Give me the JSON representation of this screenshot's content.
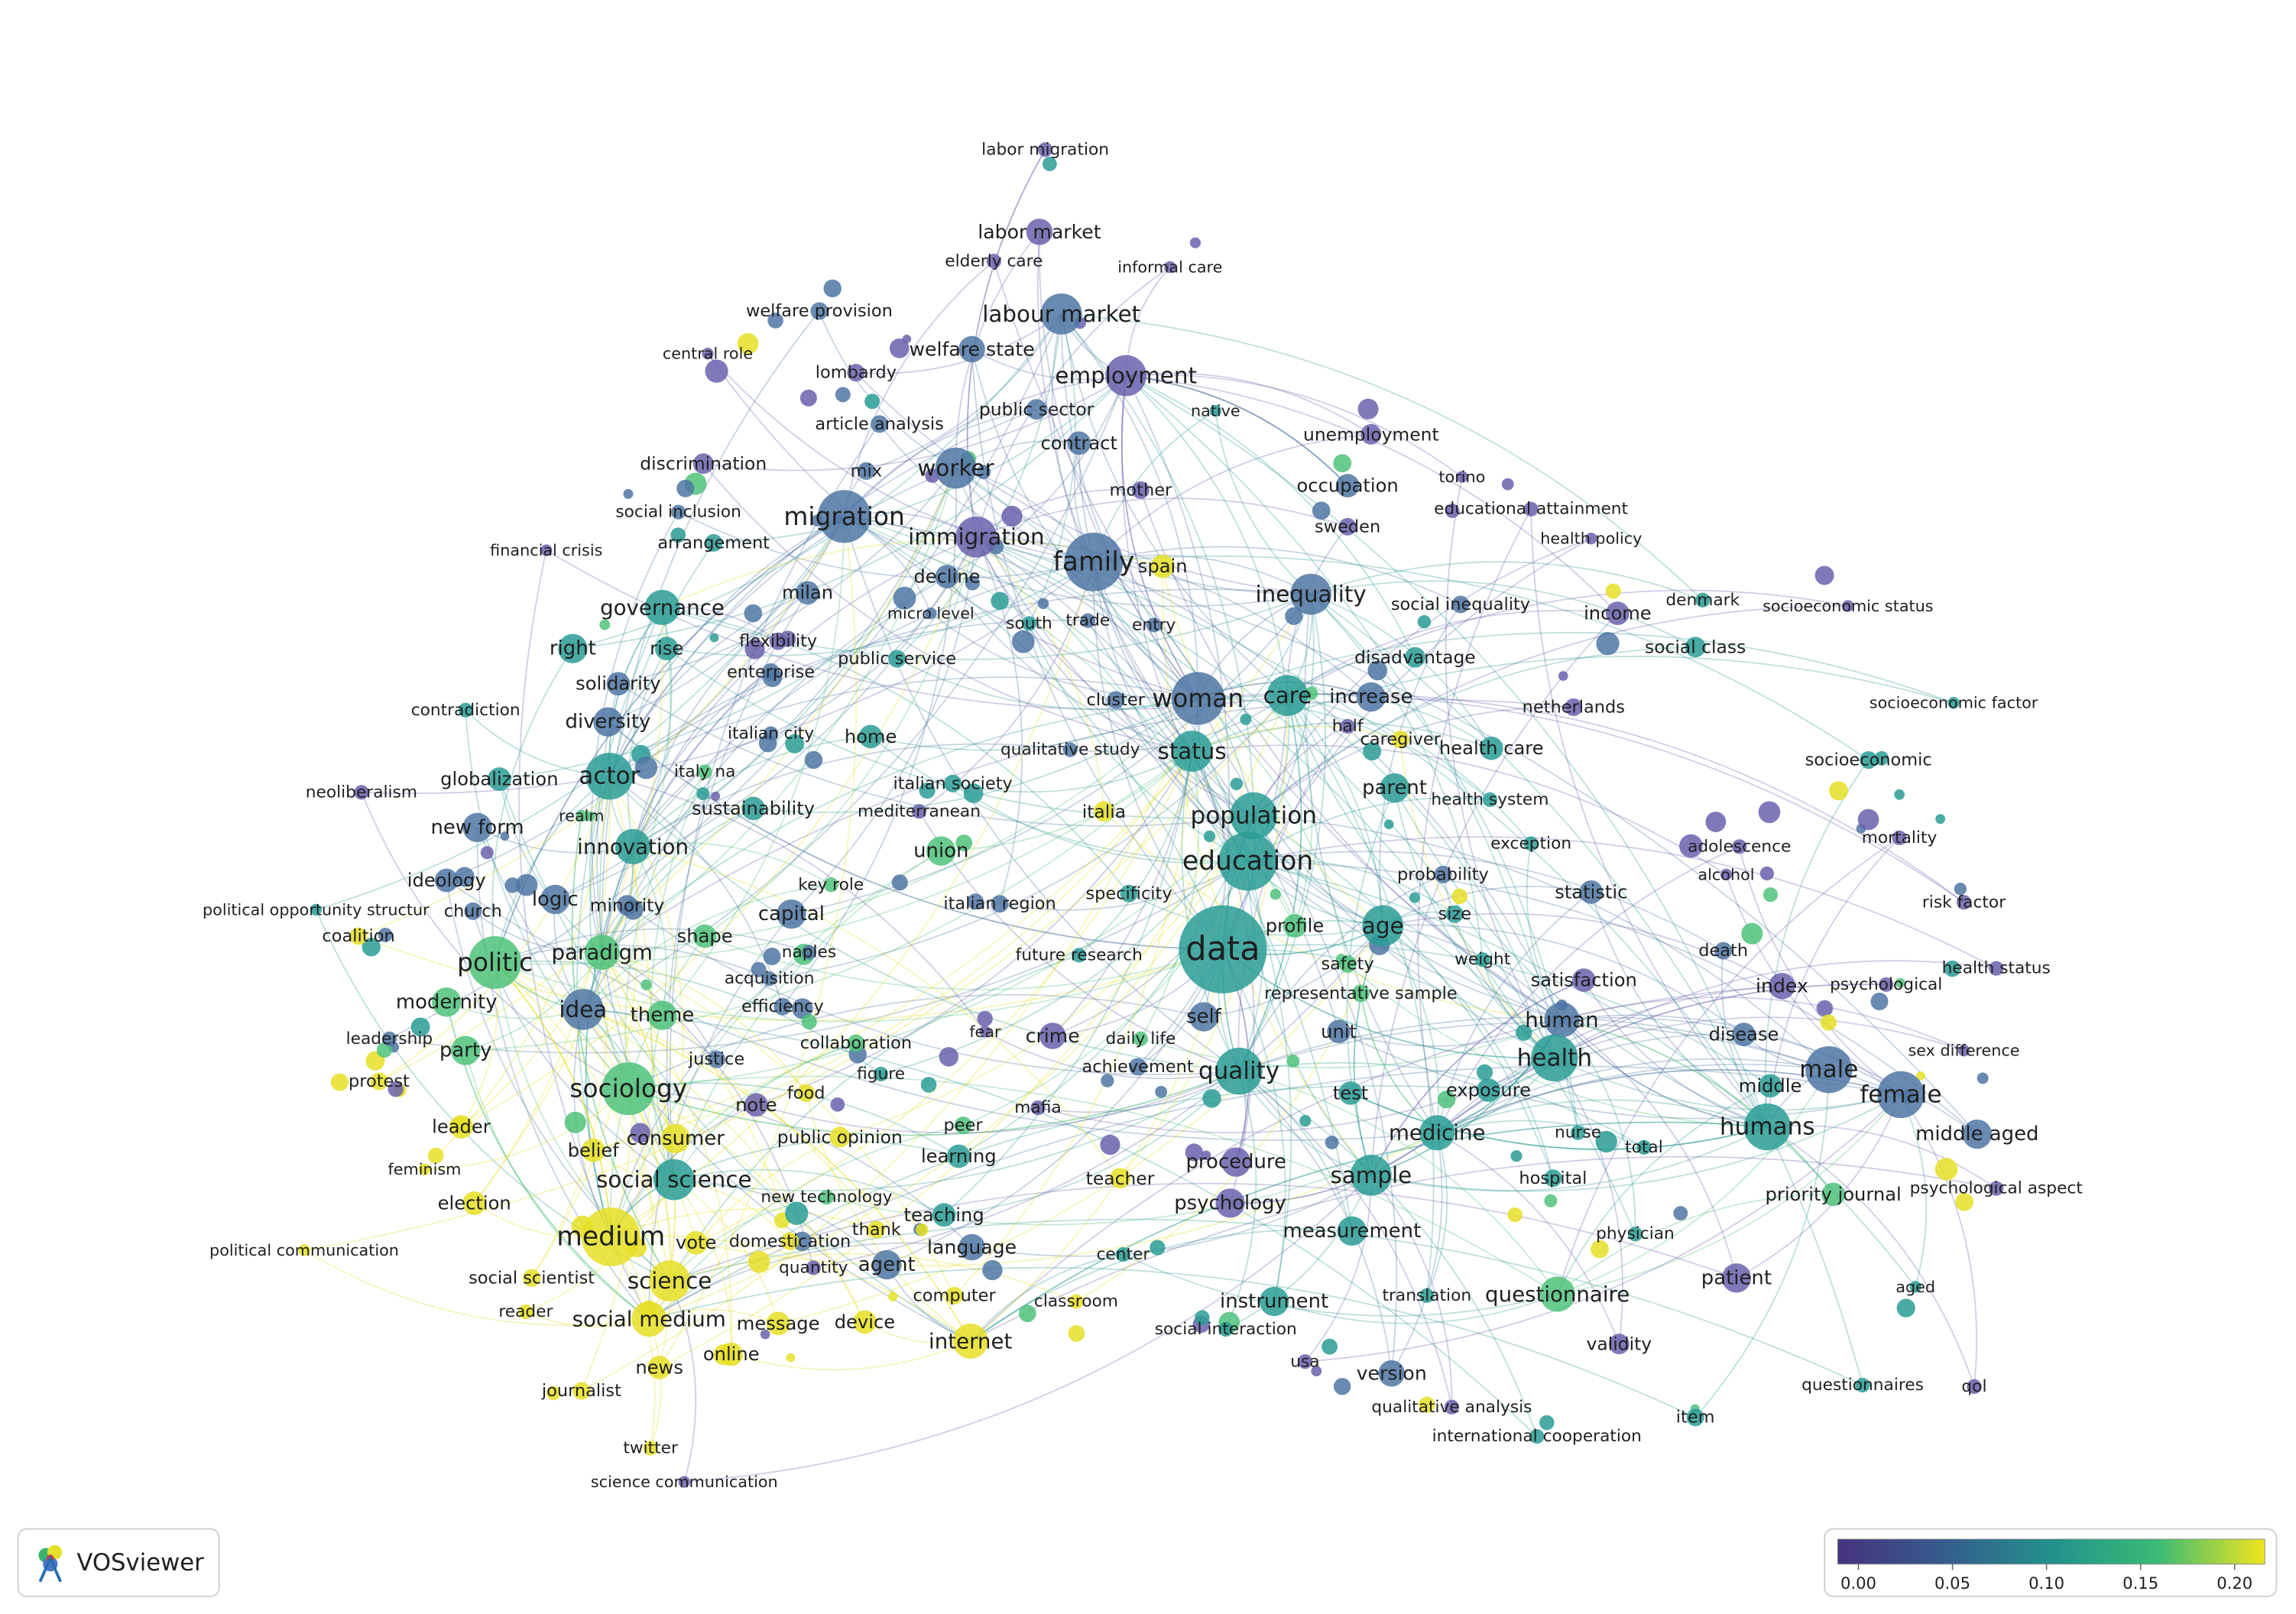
{
  "nodes": [
    "labor migration",
    "labor market",
    "elderly care",
    "informal care",
    "welfare provision",
    "labour market",
    "central role",
    "welfare state",
    "lombardy",
    "employment",
    "native",
    "public sector",
    "article analysis",
    "unemployment",
    "contract",
    "discrimination",
    "mix",
    "worker",
    "occupation",
    "torino",
    "mother",
    "educational attainment",
    "social inclusion",
    "migration",
    "immigration",
    "sweden",
    "health policy",
    "arrangement",
    "financial crisis",
    "family",
    "spain",
    "decline",
    "milan",
    "governance",
    "inequality",
    "social inequality",
    "denmark",
    "socioeconomic status",
    "income",
    "micro level",
    "south",
    "trade",
    "entry",
    "flexibility",
    "right",
    "rise",
    "social class",
    "public service",
    "disadvantage",
    "enterprise",
    "solidarity",
    "woman",
    "care",
    "increase",
    "cluster",
    "netherlands",
    "contradiction",
    "socioeconomic factor",
    "diversity",
    "half",
    "italian city",
    "home",
    "caregiver",
    "health care",
    "status",
    "qualitative study",
    "socioeconomic",
    "italy na",
    "actor",
    "globalization",
    "neoliberalism",
    "italian society",
    "parent",
    "health system",
    "mediterranean",
    "sustainability",
    "italia",
    "realm",
    "population",
    "new form",
    "mortality",
    "exception",
    "adolescence",
    "innovation",
    "union",
    "education",
    "alcohol",
    "probability",
    "ideology",
    "key role",
    "specificity",
    "statistic",
    "logic",
    "minority",
    "risk factor",
    "italian region",
    "political opportunity structur",
    "church",
    "capital",
    "size",
    "age",
    "profile",
    "coalition",
    "shape",
    "data",
    "paradigm",
    "naples",
    "future research",
    "death",
    "politic",
    "weight",
    "health status",
    "safety",
    "acquisition",
    "satisfaction",
    "index",
    "psychological",
    "representative sample",
    "modernity",
    "efficiency",
    "idea",
    "theme",
    "self",
    "human",
    "fear",
    "unit",
    "crime",
    "disease",
    "leadership",
    "daily life",
    "collaboration",
    "party",
    "sex difference",
    "justice",
    "health",
    "achievement",
    "male",
    "quality",
    "figure",
    "test",
    "sociology",
    "female",
    "exposure",
    "middle",
    "food",
    "protest",
    "note",
    "mafia",
    "leader",
    "humans",
    "peer",
    "medicine",
    "nurse",
    "middle aged",
    "public opinion",
    "consumer",
    "total",
    "belief",
    "learning",
    "procedure",
    "feminism",
    "sample",
    "social science",
    "hospital",
    "teacher",
    "priority journal",
    "psychological aspect",
    "new technology",
    "election",
    "psychology",
    "teaching",
    "measurement",
    "thank",
    "medium",
    "domestication",
    "vote",
    "physician",
    "language",
    "political communication",
    "center",
    "agent",
    "quantity",
    "science",
    "social scientist",
    "questionnaire",
    "patient",
    "aged",
    "computer",
    "translation",
    "instrument",
    "classroom",
    "reader",
    "social medium",
    "message",
    "device",
    "social interaction",
    "internet",
    "validity",
    "online",
    "usa",
    "news",
    "version",
    "questionnaires",
    "qol",
    "journalist",
    "qualitative analysis",
    "item",
    "international cooperation",
    "twitter",
    "science communication"
  ],
  "legend": {
    "lim": [
      -0.011,
      0.216
    ],
    "ticks": [
      {
        "value": 0,
        "label": "0.00"
      },
      {
        "value": 0.05,
        "label": "0.05"
      },
      {
        "value": 0.1,
        "label": "0.10"
      },
      {
        "value": 0.15,
        "label": "0.15"
      },
      {
        "value": 0.2,
        "label": "0.20"
      }
    ]
  },
  "logo": "VOSviewer"
}
